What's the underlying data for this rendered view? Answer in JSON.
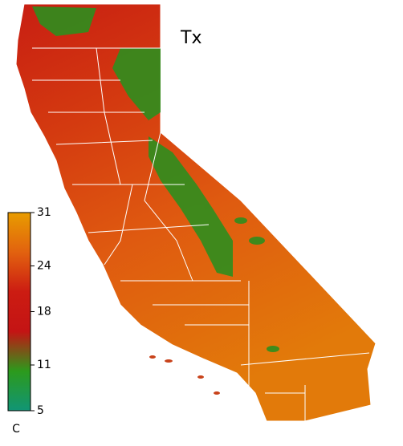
{
  "map": {
    "title": "Tx",
    "colorbar": {
      "ticks": [
        31,
        24,
        18,
        11,
        5
      ],
      "unit": "C",
      "colors": [
        "#e89c00",
        "#e2620f",
        "#cc1c12",
        "#c41414",
        "#2c9a1c",
        "#119575"
      ]
    }
  }
}
